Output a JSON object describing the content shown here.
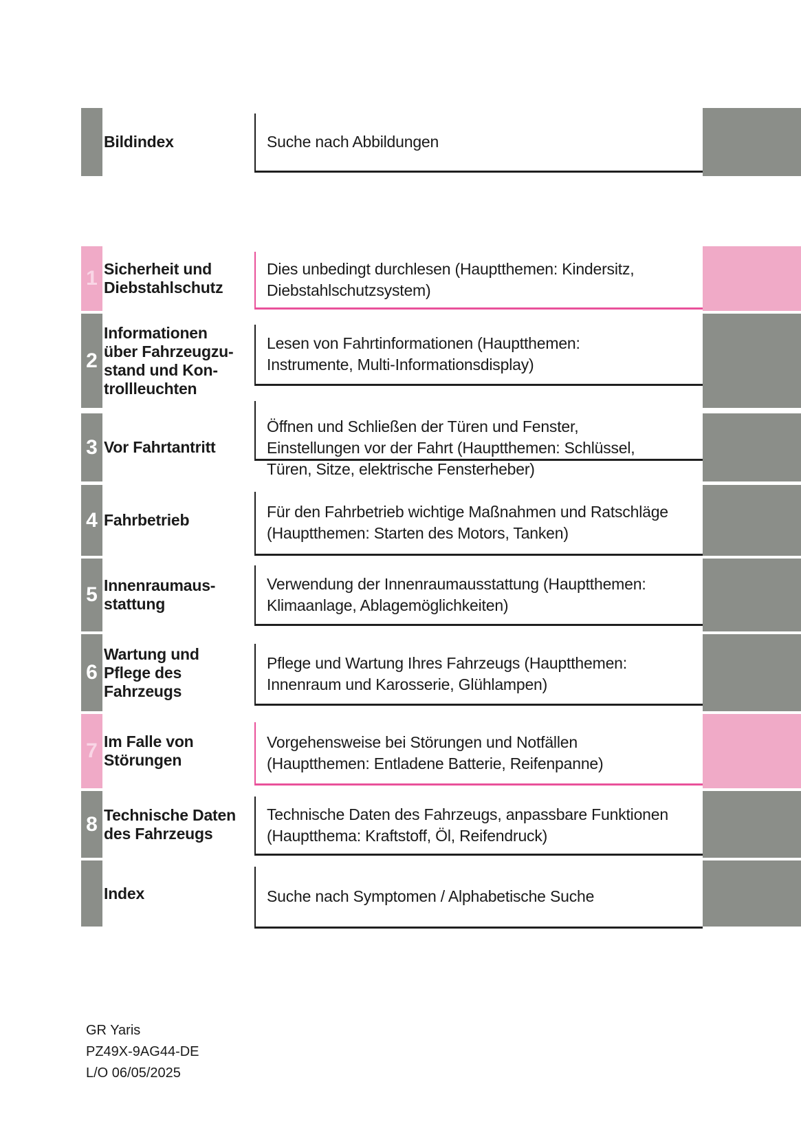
{
  "document_title": "GR Yaris Betriebsanleitung - Bildindex / Kapitelübersicht",
  "colors": {
    "tab_gray": "#8b8e89",
    "tab_pink": "#f0aac7",
    "border_pink": "#e9519a",
    "border_dark": "#1f1f1f",
    "number_on_gray": "#ffffff",
    "number_on_pink": "#f9d6e6",
    "text": "#1a1a1a"
  },
  "rows": [
    {
      "number": "",
      "label": "Bildindex",
      "description": "Suche nach Abbildungen",
      "accent": "gray"
    },
    {
      "number": "1",
      "label": "Sicherheit und\nDiebstahlschutz",
      "description": "Dies unbedingt durchlesen (Hauptthemen: Kindersitz,\nDiebstahlschutzsystem)",
      "accent": "pink"
    },
    {
      "number": "2",
      "label": "Informationen\nüber Fahrzeugzu-\nstand und Kon-\ntrollleuchten",
      "description": "Lesen von Fahrtinformationen (Hauptthemen:\nInstrumente, Multi-Informationsdisplay)",
      "accent": "gray"
    },
    {
      "number": "3",
      "label": "Vor Fahrtantritt",
      "description": "Öffnen und Schließen der Türen und Fenster,\nEinstellungen vor der Fahrt (Hauptthemen: Schlüssel,\nTüren, Sitze, elektrische Fensterheber)",
      "accent": "gray"
    },
    {
      "number": "4",
      "label": "Fahrbetrieb",
      "description": "Für den Fahrbetrieb wichtige Maßnahmen und Ratschläge\n(Hauptthemen: Starten des Motors, Tanken)",
      "accent": "gray"
    },
    {
      "number": "5",
      "label": "Innenraumaus-\nstattung",
      "description": "Verwendung der Innenraumausstattung (Hauptthemen:\nKlimaanlage, Ablagemöglichkeiten)",
      "accent": "gray"
    },
    {
      "number": "6",
      "label": "Wartung und\nPflege des\nFahrzeugs",
      "description": "Pflege und Wartung Ihres Fahrzeugs (Hauptthemen:\nInnenraum und Karosserie, Glühlampen)",
      "accent": "gray"
    },
    {
      "number": "7",
      "label": "Im Falle von\nStörungen",
      "description": "Vorgehensweise bei Störungen und Notfällen\n(Hauptthemen: Entladene Batterie, Reifenpanne)",
      "accent": "pink"
    },
    {
      "number": "8",
      "label": "Technische Daten\ndes Fahrzeugs",
      "description": "Technische Daten des Fahrzeugs, anpassbare Funktionen\n(Hauptthema: Kraftstoff, Öl, Reifendruck)",
      "accent": "gray"
    },
    {
      "number": "",
      "label": "Index",
      "description": "Suche nach Symptomen / Alphabetische Suche",
      "accent": "gray"
    }
  ],
  "footer": {
    "model": "GR Yaris",
    "part_number": "PZ49X-9AG44-DE",
    "layout_date": "L/O 06/05/2025"
  }
}
